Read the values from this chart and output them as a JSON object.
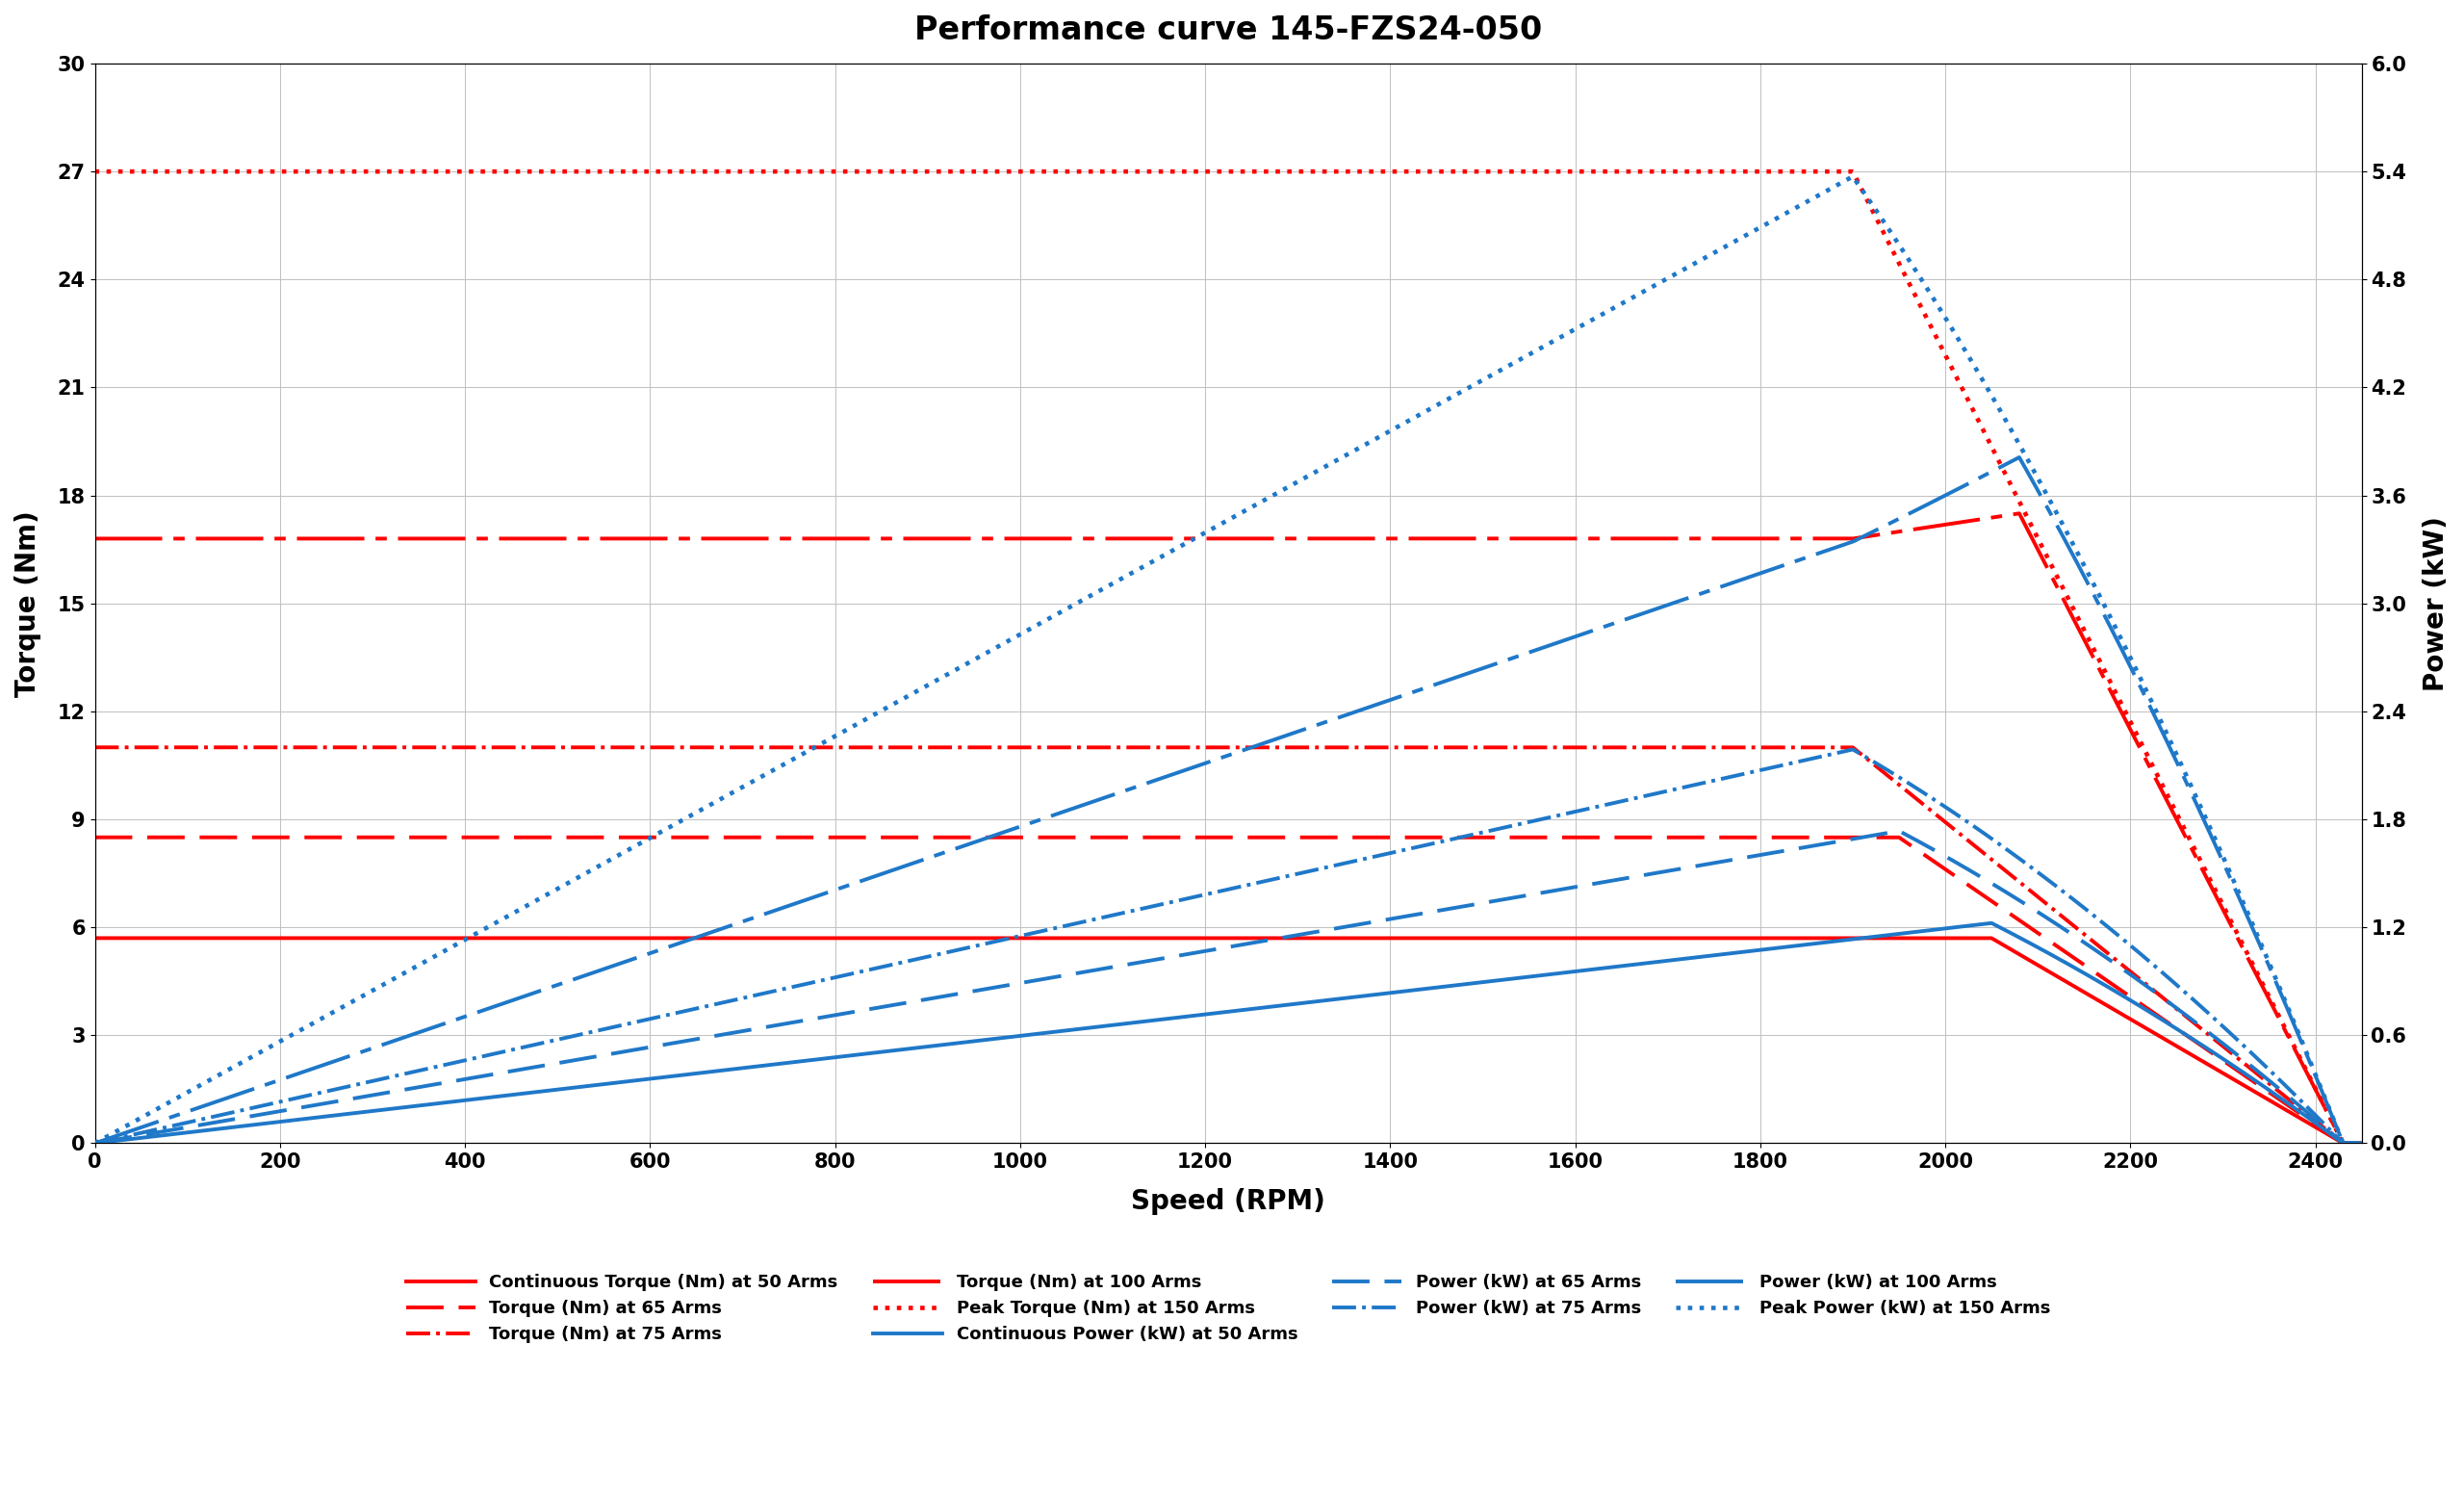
{
  "title": "Performance curve 145-FZS24-050",
  "xlabel": "Speed (RPM)",
  "ylabel_left": "Torque (Nm)",
  "ylabel_right": "Power (kW)",
  "xlim": [
    0,
    2450
  ],
  "ylim_torque": [
    0,
    30
  ],
  "ylim_power": [
    0,
    6
  ],
  "xticks": [
    0,
    200,
    400,
    600,
    800,
    1000,
    1200,
    1400,
    1600,
    1800,
    2000,
    2200,
    2400
  ],
  "yticks_left": [
    0,
    3,
    6,
    9,
    12,
    15,
    18,
    21,
    24,
    27,
    30
  ],
  "yticks_right": [
    0,
    0.6,
    1.2,
    1.8,
    2.4,
    3.0,
    3.6,
    4.2,
    4.8,
    5.4,
    6.0
  ],
  "colors": {
    "red": "#FF0000",
    "blue": "#1F78C8"
  },
  "curves": {
    "T50_flat": 5.7,
    "T65_flat": 8.5,
    "T75_flat": 11.0,
    "T100_flat": 16.8,
    "T150_flat": 27.0,
    "base_rpm_50": 2050,
    "base_rpm_65": 1950,
    "base_rpm_75": 1900,
    "base_rpm_100": 1900,
    "base_rpm_150": 1900,
    "peak_rpm_100": 2080,
    "peak_T100": 17.5,
    "peak_rpm_150": 1930,
    "peak_T150": 27.0,
    "max_rpm": 2450,
    "dropoff_rpm": 2430
  },
  "legend": {
    "entries": [
      "Continuous Torque (Nm) at 50 Arms",
      "Torque (Nm) at 65 Arms",
      "Torque (Nm) at 75 Arms",
      "Torque (Nm) at 100 Arms",
      "Peak Torque (Nm) at 150 Arms",
      "Continuous Power (kW) at 50 Arms",
      "Power (kW) at 65 Arms",
      "Power (kW) at 75 Arms",
      "Power (kW) at 100 Arms",
      "Peak Power (kW) at 150 Arms"
    ]
  }
}
